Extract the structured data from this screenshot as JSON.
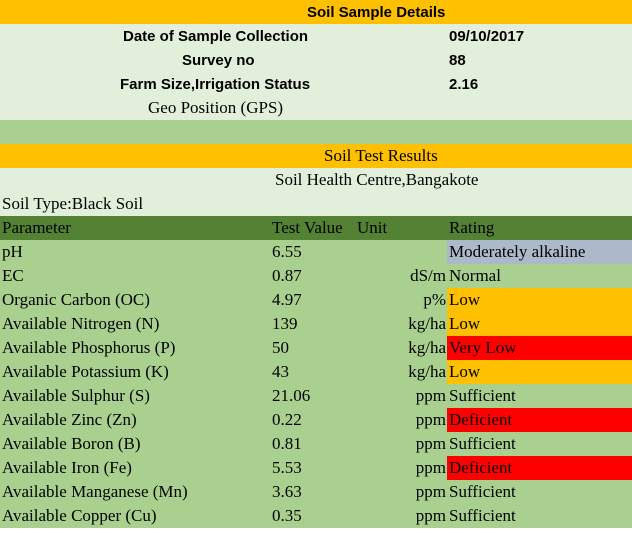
{
  "colors": {
    "orange": "#FFC000",
    "light_green": "#E2EFDA",
    "mid_green": "#A9D08E",
    "dark_green": "#548235",
    "blue_gray": "#ACB9CA",
    "red": "#FF0000"
  },
  "sample": {
    "title": "Soil Sample Details",
    "date_label": "Date of Sample Collection",
    "date_value": "09/10/2017",
    "survey_label": "Survey no",
    "survey_value": "88",
    "farm_label": "Farm Size,Irrigation Status",
    "farm_value": "2.16",
    "gps_label": "Geo Position (GPS)"
  },
  "results": {
    "title": "Soil Test Results",
    "centre": "Soil Health Centre,Bangakote",
    "soil_type": "Soil Type:Black Soil"
  },
  "table": {
    "headers": {
      "parameter": "Parameter",
      "value": "Test Value",
      "unit": "Unit",
      "rating": "Rating"
    },
    "rows": [
      {
        "parameter": "pH",
        "value": "6.55",
        "unit": "",
        "rating": "Moderately alkaline",
        "rating_color": "#ACB9CA"
      },
      {
        "parameter": "EC",
        "value": "0.87",
        "unit": "dS/m",
        "rating": "Normal",
        "rating_color": "#A9D08E"
      },
      {
        "parameter": "Organic Carbon (OC)",
        "value": "4.97",
        "unit": "p%",
        "rating": "Low",
        "rating_color": "#FFC000"
      },
      {
        "parameter": "Available Nitrogen (N)",
        "value": "139",
        "unit": "kg/ha",
        "rating": "Low",
        "rating_color": "#FFC000"
      },
      {
        "parameter": "Available Phosphorus (P)",
        "value": "50",
        "unit": "kg/ha",
        "rating": "Very Low",
        "rating_color": "#FF0000"
      },
      {
        "parameter": "Available Potassium (K)",
        "value": "43",
        "unit": "kg/ha",
        "rating": "Low",
        "rating_color": "#FFC000"
      },
      {
        "parameter": "Available Sulphur (S)",
        "value": "21.06",
        "unit": "ppm",
        "rating": "Sufficient",
        "rating_color": "#A9D08E"
      },
      {
        "parameter": "Available Zinc (Zn)",
        "value": "0.22",
        "unit": "ppm",
        "rating": "Deficient",
        "rating_color": "#FF0000"
      },
      {
        "parameter": "Available Boron (B)",
        "value": "0.81",
        "unit": "ppm",
        "rating": "Sufficient",
        "rating_color": "#A9D08E"
      },
      {
        "parameter": "Available Iron (Fe)",
        "value": "5.53",
        "unit": "ppm",
        "rating": "Deficient",
        "rating_color": "#FF0000"
      },
      {
        "parameter": "Available Manganese (Mn)",
        "value": "3.63",
        "unit": "ppm",
        "rating": "Sufficient",
        "rating_color": "#A9D08E"
      },
      {
        "parameter": "Available Copper (Cu)",
        "value": "0.35",
        "unit": "ppm",
        "rating": "Sufficient",
        "rating_color": "#A9D08E"
      }
    ]
  }
}
